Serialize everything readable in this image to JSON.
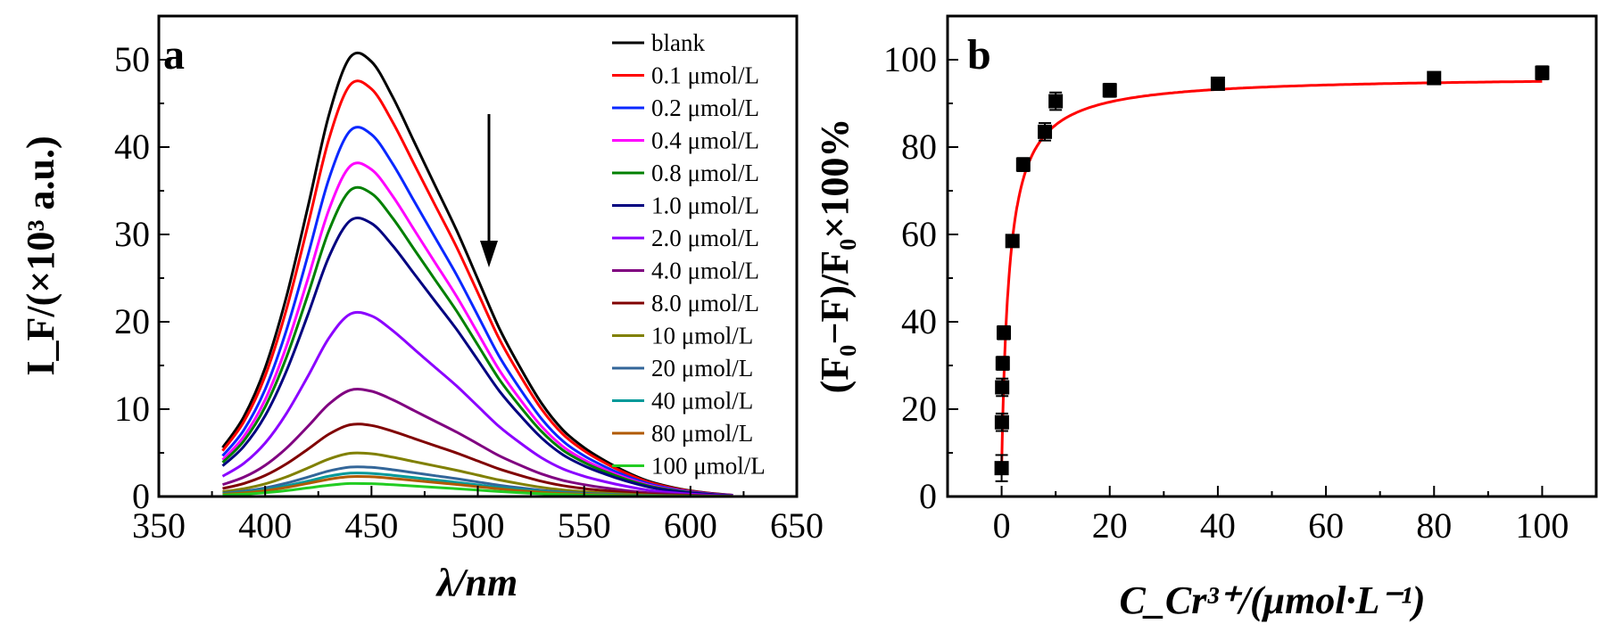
{
  "chart_data": [
    {
      "type": "line",
      "panel_label": "a",
      "xlabel": "λ/nm",
      "ylabel": "I_F/(×10³ a.u.)",
      "xlim": [
        350,
        650
      ],
      "ylim": [
        0,
        55
      ],
      "x_ticks": [
        "350",
        "400",
        "450",
        "500",
        "550",
        "600",
        "650"
      ],
      "y_ticks": [
        "0",
        "10",
        "20",
        "30",
        "40",
        "50"
      ],
      "x": [
        380,
        390,
        400,
        410,
        420,
        430,
        440,
        450,
        460,
        470,
        480,
        490,
        500,
        510,
        520,
        530,
        540,
        550,
        560,
        570,
        580,
        590,
        600,
        610,
        620
      ],
      "profile": [
        0.11,
        0.18,
        0.29,
        0.45,
        0.65,
        0.86,
        0.99,
        0.98,
        0.9,
        0.8,
        0.7,
        0.6,
        0.49,
        0.38,
        0.29,
        0.21,
        0.15,
        0.11,
        0.08,
        0.055,
        0.035,
        0.022,
        0.013,
        0.007,
        0.003
      ],
      "series": [
        {
          "name": "blank",
          "peak": 50.8,
          "color": "#000000"
        },
        {
          "name": "0.1 μmol/L",
          "peak": 47.6,
          "color": "#ff0000"
        },
        {
          "name": "0.2 μmol/L",
          "peak": 42.3,
          "color": "#0a28ff"
        },
        {
          "name": "0.4 μmol/L",
          "peak": 38.2,
          "color": "#ff00ff"
        },
        {
          "name": "0.8 μmol/L",
          "peak": 35.4,
          "color": "#008000"
        },
        {
          "name": "1.0 μmol/L",
          "peak": 31.9,
          "color": "#000080"
        },
        {
          "name": "2.0 μmol/L",
          "peak": 21.1,
          "color": "#8b00ff"
        },
        {
          "name": "4.0 μmol/L",
          "peak": 12.3,
          "color": "#800080"
        },
        {
          "name": "8.0 μmol/L",
          "peak": 8.3,
          "color": "#800000"
        },
        {
          "name": "10 μmol/L",
          "peak": 5.0,
          "color": "#808000"
        },
        {
          "name": "20 μmol/L",
          "peak": 3.4,
          "color": "#336699"
        },
        {
          "name": "40 μmol/L",
          "peak": 2.7,
          "color": "#009999"
        },
        {
          "name": "80 μmol/L",
          "peak": 2.3,
          "color": "#b05a00"
        },
        {
          "name": "100 μmol/L",
          "peak": 1.5,
          "color": "#22cc22"
        }
      ]
    },
    {
      "type": "scatter",
      "panel_label": "b",
      "xlabel": "C_Cr³⁺/(μmol·L⁻¹)",
      "ylabel": "(F₀−F)/F₀×100%",
      "xlim": [
        -10,
        110
      ],
      "ylim": [
        0,
        110
      ],
      "x_ticks": [
        "0",
        "20",
        "40",
        "60",
        "80",
        "100"
      ],
      "y_ticks": [
        "0",
        "20",
        "40",
        "60",
        "80",
        "100"
      ],
      "points": [
        {
          "x": 0.0,
          "y": 6.5,
          "err": 3.0
        },
        {
          "x": 0.05,
          "y": 17.0,
          "err": 2.0
        },
        {
          "x": 0.1,
          "y": 25.0,
          "err": 2.0
        },
        {
          "x": 0.2,
          "y": 30.5,
          "err": 1.5
        },
        {
          "x": 0.4,
          "y": 37.5,
          "err": 1.5
        },
        {
          "x": 2.0,
          "y": 58.5,
          "err": 1.0
        },
        {
          "x": 4.0,
          "y": 76.0,
          "err": 1.5
        },
        {
          "x": 8.0,
          "y": 83.5,
          "err": 2.0
        },
        {
          "x": 10.0,
          "y": 90.5,
          "err": 2.0
        },
        {
          "x": 20.0,
          "y": 93.0,
          "err": 1.5
        },
        {
          "x": 40.0,
          "y": 94.5,
          "err": 1.0
        },
        {
          "x": 80.0,
          "y": 95.8,
          "err": 1.2
        },
        {
          "x": 100.0,
          "y": 97.0,
          "err": 1.5
        }
      ],
      "fit": {
        "color": "#ff0000",
        "ymax": 96.3,
        "k": 0.7,
        "y0": 6.5
      }
    }
  ]
}
